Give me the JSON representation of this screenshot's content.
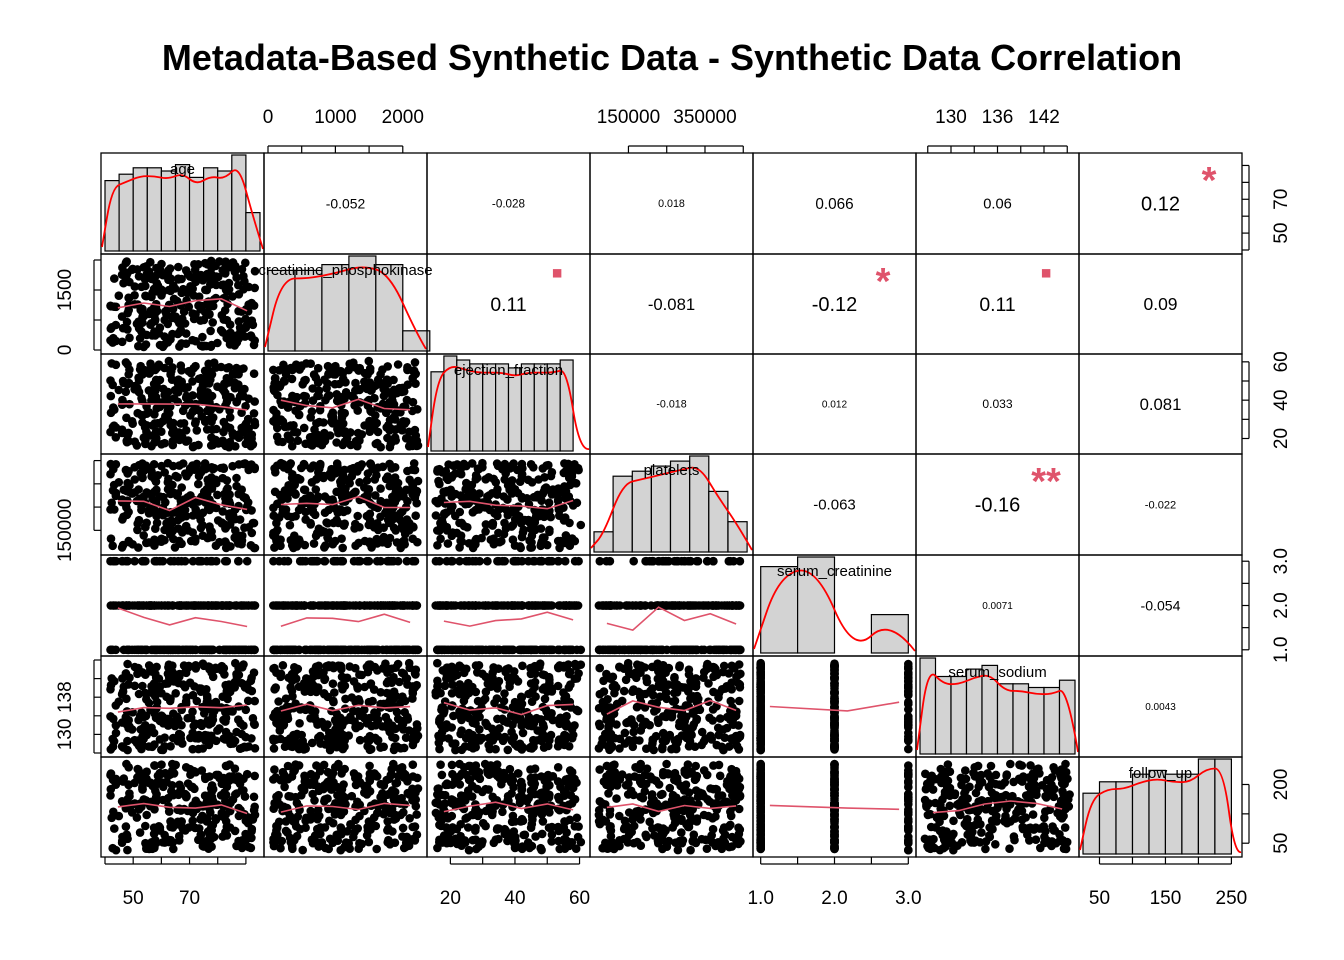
{
  "chart_data": {
    "type": "scatter-matrix",
    "title": "Metadata-Based Synthetic Data - Synthetic Data Correlation",
    "variables": [
      "age",
      "creatinine_phosphokinase",
      "ejection_fraction",
      "platelets",
      "serum_creatinine",
      "serum_sodium",
      "follow_up"
    ],
    "ranges": [
      [
        40,
        95
      ],
      [
        0,
        2300
      ],
      [
        14,
        62
      ],
      [
        60000,
        465000
      ],
      [
        0.95,
        3.05
      ],
      [
        126,
        146
      ],
      [
        25,
        260
      ]
    ],
    "axis_ticks": {
      "top": [
        {
          "col": 1,
          "values": [
            0,
            1000,
            2000
          ],
          "labels": [
            "0",
            "1000",
            "2000"
          ]
        },
        {
          "col": 3,
          "values": [
            150000,
            350000
          ],
          "labels": [
            "150000",
            "350000"
          ]
        },
        {
          "col": 5,
          "values": [
            130,
            136,
            142
          ],
          "labels": [
            "130",
            "136",
            "142"
          ]
        }
      ],
      "bottom": [
        {
          "col": 0,
          "values": [
            50,
            70
          ],
          "labels": [
            "50",
            "70"
          ]
        },
        {
          "col": 2,
          "values": [
            20,
            40,
            60
          ],
          "labels": [
            "20",
            "40",
            "60"
          ]
        },
        {
          "col": 4,
          "values": [
            1.0,
            2.0,
            3.0
          ],
          "labels": [
            "1.0",
            "2.0",
            "3.0"
          ]
        },
        {
          "col": 6,
          "values": [
            50,
            150,
            250
          ],
          "labels": [
            "50",
            "150",
            "250"
          ]
        }
      ],
      "left": [
        {
          "row": 1,
          "values": [
            0,
            1500
          ],
          "labels": [
            "0",
            "1500"
          ]
        },
        {
          "row": 3,
          "values": [
            150000
          ],
          "labels": [
            "150000"
          ]
        },
        {
          "row": 5,
          "values": [
            130,
            138
          ],
          "labels": [
            "130",
            "138"
          ]
        }
      ],
      "right": [
        {
          "row": 0,
          "values": [
            50,
            70
          ],
          "labels": [
            "50",
            "70"
          ]
        },
        {
          "row": 2,
          "values": [
            20,
            40,
            60
          ],
          "labels": [
            "20",
            "40",
            "60"
          ]
        },
        {
          "row": 4,
          "values": [
            1.0,
            2.0,
            3.0
          ],
          "labels": [
            "1.0",
            "2.0",
            "3.0"
          ]
        },
        {
          "row": 6,
          "values": [
            50,
            200
          ],
          "labels": [
            "50",
            "200"
          ]
        }
      ]
    },
    "histograms": [
      {
        "var": "age",
        "breaks": [
          40,
          45,
          50,
          55,
          60,
          65,
          70,
          75,
          80,
          85,
          90,
          95
        ],
        "counts": [
          22,
          24,
          26,
          26,
          25,
          27,
          23,
          26,
          25,
          30,
          12
        ]
      },
      {
        "var": "creatinine_phosphokinase",
        "breaks": [
          0,
          400,
          800,
          1200,
          1600,
          2000,
          2400
        ],
        "counts": [
          28,
          28,
          30,
          33,
          30,
          7
        ]
      },
      {
        "var": "ejection_fraction",
        "breaks": [
          14,
          18,
          22,
          26,
          30,
          34,
          38,
          42,
          46,
          50,
          54,
          58,
          62
        ],
        "counts": [
          20,
          24,
          23,
          22,
          22,
          22,
          21,
          22,
          22,
          22,
          23,
          0
        ]
      },
      {
        "var": "platelets",
        "breaks": [
          60000,
          110000,
          160000,
          210000,
          260000,
          310000,
          360000,
          410000,
          460000
        ],
        "counts": [
          4,
          15,
          16,
          17,
          18,
          19,
          12,
          6
        ]
      },
      {
        "var": "serum_creatinine",
        "breaks": [
          1.0,
          1.5,
          2.0,
          2.5,
          3.0
        ],
        "counts": [
          9,
          10,
          0,
          4
        ]
      },
      {
        "var": "serum_sodium",
        "breaks": [
          126,
          128,
          130,
          132,
          134,
          136,
          138,
          140,
          142,
          144,
          146
        ],
        "counts": [
          26,
          21,
          21,
          23,
          24,
          19,
          19,
          18,
          18,
          20
        ]
      },
      {
        "var": "follow_up",
        "breaks": [
          25,
          50,
          75,
          100,
          125,
          150,
          175,
          200,
          225,
          250,
          260
        ],
        "counts": [
          16,
          19,
          19,
          21,
          22,
          21,
          21,
          25,
          25,
          0
        ]
      }
    ],
    "correlations": [
      {
        "row": 0,
        "col": 1,
        "value": -0.052,
        "label": "-0.052",
        "stars": ""
      },
      {
        "row": 0,
        "col": 2,
        "value": -0.028,
        "label": "-0.028",
        "stars": ""
      },
      {
        "row": 0,
        "col": 3,
        "value": 0.018,
        "label": "0.018",
        "stars": ""
      },
      {
        "row": 0,
        "col": 4,
        "value": 0.066,
        "label": "0.066",
        "stars": ""
      },
      {
        "row": 0,
        "col": 5,
        "value": 0.06,
        "label": "0.06",
        "stars": ""
      },
      {
        "row": 0,
        "col": 6,
        "value": 0.12,
        "label": "0.12",
        "stars": "*"
      },
      {
        "row": 1,
        "col": 2,
        "value": 0.11,
        "label": "0.11",
        "stars": "."
      },
      {
        "row": 1,
        "col": 3,
        "value": -0.081,
        "label": "-0.081",
        "stars": ""
      },
      {
        "row": 1,
        "col": 4,
        "value": -0.12,
        "label": "-0.12",
        "stars": "*"
      },
      {
        "row": 1,
        "col": 5,
        "value": 0.11,
        "label": "0.11",
        "stars": "."
      },
      {
        "row": 1,
        "col": 6,
        "value": 0.09,
        "label": "0.09",
        "stars": ""
      },
      {
        "row": 2,
        "col": 3,
        "value": -0.018,
        "label": "-0.018",
        "stars": ""
      },
      {
        "row": 2,
        "col": 4,
        "value": 0.012,
        "label": "0.012",
        "stars": ""
      },
      {
        "row": 2,
        "col": 5,
        "value": 0.033,
        "label": "0.033",
        "stars": ""
      },
      {
        "row": 2,
        "col": 6,
        "value": 0.081,
        "label": "0.081",
        "stars": ""
      },
      {
        "row": 3,
        "col": 4,
        "value": -0.063,
        "label": "-0.063",
        "stars": ""
      },
      {
        "row": 3,
        "col": 5,
        "value": -0.16,
        "label": "-0.16",
        "stars": "**"
      },
      {
        "row": 3,
        "col": 6,
        "value": -0.022,
        "label": "-0.022",
        "stars": ""
      },
      {
        "row": 4,
        "col": 5,
        "value": 0.0071,
        "label": "0.0071",
        "stars": ""
      },
      {
        "row": 4,
        "col": 6,
        "value": -0.054,
        "label": "-0.054",
        "stars": ""
      },
      {
        "row": 5,
        "col": 6,
        "value": 0.0043,
        "label": "0.0043",
        "stars": ""
      }
    ],
    "discrete_values": {
      "serum_creatinine": [
        1.0,
        2.0,
        3.0
      ]
    },
    "colors": {
      "histogram_fill": "#d3d3d3",
      "density_line": "#ff0000",
      "smooth_line": "#df536b",
      "stars": "#df536b",
      "points": "#000000"
    }
  }
}
